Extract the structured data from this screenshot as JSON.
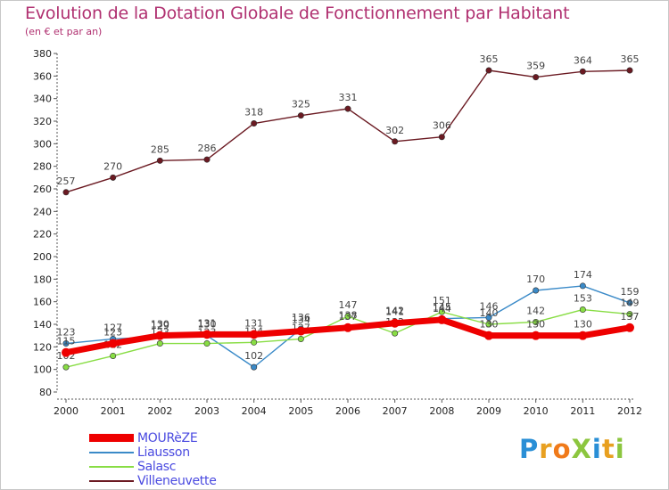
{
  "title": "Evolution de la Dotation Globale de Fonctionnement par Habitant",
  "subtitle": "(en € et par an)",
  "brand": {
    "text": "ProXiti",
    "letters": [
      {
        "ch": "P",
        "color": "#2a8fd6"
      },
      {
        "ch": "r",
        "color": "#e8a020"
      },
      {
        "ch": "o",
        "color": "#f07a1a"
      },
      {
        "ch": "X",
        "color": "#8cc63f"
      },
      {
        "ch": "i",
        "color": "#2a8fd6"
      },
      {
        "ch": "t",
        "color": "#e8a020"
      },
      {
        "ch": "i",
        "color": "#8cc63f"
      }
    ]
  },
  "chart_data": {
    "type": "line",
    "title": "Evolution de la Dotation Globale de Fonctionnement par Habitant",
    "subtitle": "(en € et par an)",
    "xlabel": "",
    "ylabel": "",
    "categories": [
      "2000",
      "2001",
      "2002",
      "2003",
      "2004",
      "2005",
      "2006",
      "2007",
      "2008",
      "2009",
      "2010",
      "2011",
      "2012"
    ],
    "ylim": [
      80,
      380
    ],
    "yticks": [
      80,
      100,
      120,
      140,
      160,
      180,
      200,
      220,
      240,
      260,
      280,
      300,
      320,
      340,
      360,
      380
    ],
    "grid": false,
    "legend_position": "bottom-left",
    "series": [
      {
        "name": "Villeneuvette",
        "color": "#6b1a22",
        "values": [
          257,
          270,
          285,
          286,
          318,
          325,
          331,
          302,
          306,
          365,
          359,
          364,
          365
        ],
        "labels": [
          "257",
          "270",
          "285",
          "286",
          "318",
          "325",
          "331",
          "302",
          "306",
          "365",
          "359",
          "364",
          "365"
        ]
      },
      {
        "name": "Liausson",
        "color": "#3a8ac8",
        "values": [
          123,
          127,
          129,
          130,
          102,
          136,
          138,
          142,
          145,
          146,
          170,
          174,
          159
        ],
        "labels": [
          "123",
          "127",
          "129",
          "130",
          "102",
          "136",
          "138",
          "142",
          "145",
          "146",
          "170",
          "174",
          "159"
        ]
      },
      {
        "name": "Salasc",
        "color": "#88dd44",
        "values": [
          102,
          112,
          123,
          123,
          124,
          127,
          147,
          132,
          151,
          140,
          142,
          153,
          149
        ],
        "labels": [
          "102",
          "112",
          "123",
          "123",
          "124",
          "127",
          "147",
          "132",
          "151",
          "140",
          "142",
          "153",
          "149"
        ]
      },
      {
        "name": "MOURèZE",
        "color": "#ee0000",
        "values": [
          115,
          123,
          130,
          131,
          131,
          134,
          137,
          141,
          144,
          130,
          130,
          130,
          137
        ],
        "labels": [
          "115",
          "123",
          "130",
          "131",
          "131",
          "134",
          "137",
          "141",
          "144",
          "130",
          "130",
          "130",
          "137"
        ]
      }
    ]
  },
  "legend": [
    {
      "name": "MOURèZE",
      "color": "#ee0000",
      "thick": true
    },
    {
      "name": "Liausson",
      "color": "#3a8ac8",
      "thick": false
    },
    {
      "name": "Salasc",
      "color": "#88dd44",
      "thick": false
    },
    {
      "name": "Villeneuvette",
      "color": "#6b1a22",
      "thick": false
    }
  ]
}
